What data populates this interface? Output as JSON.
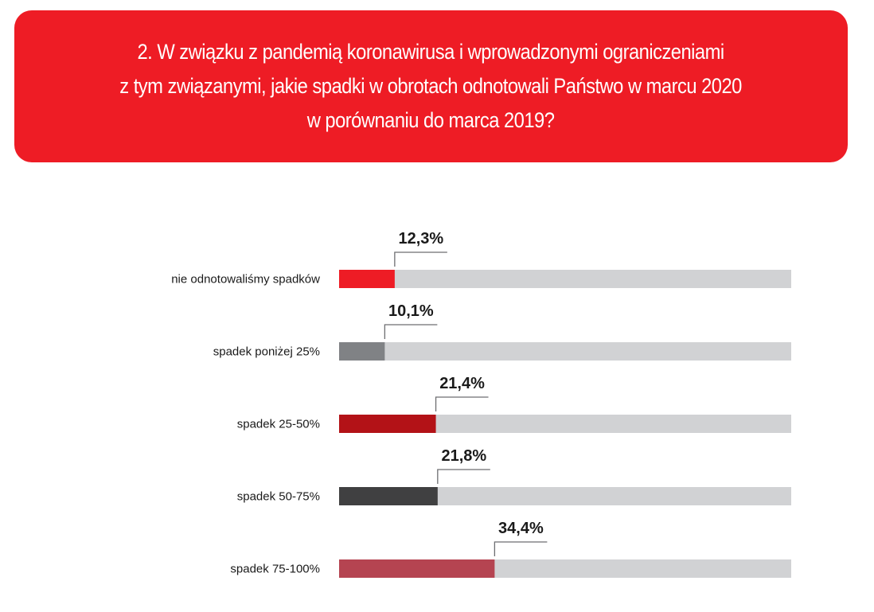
{
  "colors": {
    "banner_bg": "#ee1c25",
    "track": "#d1d2d4",
    "leader": "#6d6e71"
  },
  "banner": {
    "title": "2. W związku z pandemią koronawirusa i wprowadzonymi ograniczeniami\nz tym związanymi, jakie spadki w obrotach odnotowali Państwo w marcu 2020\nw porównaniu do marca 2019?"
  },
  "chart_data": {
    "type": "bar",
    "orientation": "horizontal",
    "categories": [
      "nie odnotowaliśmy spadków",
      "spadek poniżej 25%",
      "spadek 25-50%",
      "spadek 50-75%",
      "spadek 75-100%"
    ],
    "values": [
      12.3,
      10.1,
      21.4,
      21.8,
      34.4
    ],
    "value_labels": [
      "12,3%",
      "10,1%",
      "21,4%",
      "21,8%",
      "34,4%"
    ],
    "bar_colors": [
      "#ee1c25",
      "#808285",
      "#b31217",
      "#404041",
      "#b54451"
    ],
    "xlim": [
      0,
      100
    ],
    "grid": false,
    "legend": "none"
  }
}
